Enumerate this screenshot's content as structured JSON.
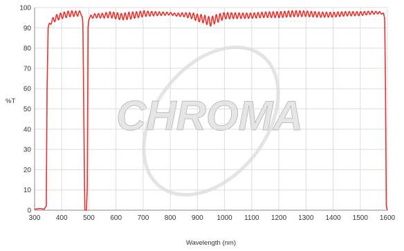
{
  "chart_data": {
    "type": "line",
    "xlabel": "Wavelength (nm)",
    "ylabel": "%T",
    "xlim": [
      300,
      1600
    ],
    "ylim": [
      0,
      100
    ],
    "x_ticks": [
      300,
      400,
      500,
      600,
      700,
      800,
      900,
      1000,
      1100,
      1200,
      1300,
      1400,
      1500,
      1600
    ],
    "y_ticks": [
      0,
      10,
      20,
      30,
      40,
      50,
      60,
      70,
      80,
      90,
      100
    ],
    "grid": true,
    "series": [
      {
        "color": "#e8302c",
        "x": [
          300,
          320,
          335,
          343,
          346,
          350,
          360,
          380,
          400,
          430,
          460,
          470,
          475,
          478,
          482,
          485,
          488,
          491,
          494,
          497,
          500,
          520,
          550,
          580,
          600,
          620,
          650,
          680,
          700,
          720,
          750,
          780,
          800,
          820,
          850,
          880,
          900,
          920,
          940,
          950,
          960,
          980,
          1000,
          1050,
          1100,
          1150,
          1200,
          1250,
          1300,
          1350,
          1400,
          1450,
          1500,
          1540,
          1570,
          1585,
          1590,
          1593,
          1596,
          1600
        ],
        "y": [
          0.5,
          0.8,
          0.5,
          2,
          60,
          90,
          93,
          95,
          96,
          97,
          97,
          97.5,
          96,
          92,
          40,
          0,
          0,
          0,
          10,
          90,
          95,
          96,
          96,
          96.5,
          96,
          95.5,
          96,
          96.5,
          97,
          97,
          97,
          97,
          97,
          96.5,
          96.5,
          96,
          95,
          94.5,
          93.5,
          93,
          94,
          95,
          96,
          96,
          96,
          96.5,
          96.5,
          97,
          97,
          96.5,
          96.5,
          97,
          97,
          97.5,
          97.5,
          97,
          95,
          60,
          2,
          0
        ],
        "ripple": [
          0,
          0,
          0,
          0,
          0,
          0.8,
          1.2,
          1.5,
          1.5,
          1.5,
          1.2,
          1,
          0.5,
          0,
          0,
          0,
          0,
          0,
          0,
          0,
          0.8,
          1,
          1.2,
          1.5,
          1.6,
          1.6,
          1.8,
          1.5,
          1.5,
          1.2,
          1,
          0.8,
          0.6,
          0.7,
          1,
          1.5,
          1.8,
          2,
          2.2,
          2.2,
          2.2,
          2,
          1.6,
          1.4,
          1.3,
          1.4,
          1.5,
          1.5,
          1.4,
          1.3,
          1.2,
          1.1,
          1,
          0.8,
          0.6,
          0.3,
          0,
          0,
          0,
          0
        ],
        "ripple_period_nm": 14
      }
    ]
  },
  "watermark": {
    "text": "CHROMA",
    "fill": "#e6e6e6",
    "stroke": "#bdbdbd"
  }
}
